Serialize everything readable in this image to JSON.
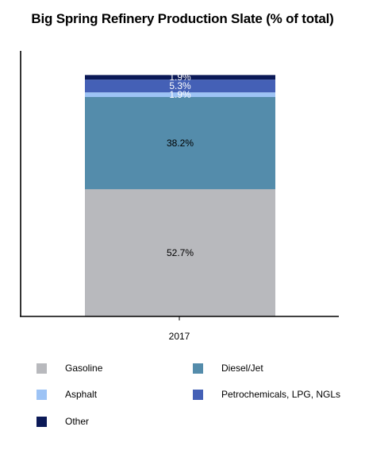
{
  "chart_data": {
    "type": "bar",
    "stacked": true,
    "title": "Big Spring Refinery Production Slate (% of total)",
    "categories": [
      "2017"
    ],
    "series": [
      {
        "name": "Gasoline",
        "values": [
          52.7
        ],
        "label": "52.7%",
        "color": "#b8b9bd",
        "label_color": "#000000"
      },
      {
        "name": "Diesel/Jet",
        "values": [
          38.2
        ],
        "label": "38.2%",
        "color": "#548cab",
        "label_color": "#000000"
      },
      {
        "name": "Asphalt",
        "values": [
          1.9
        ],
        "label": "1.9%",
        "color": "#9dc3f5",
        "label_color": "#ffffff"
      },
      {
        "name": "Petrochemicals, LPG, NGLs",
        "values": [
          5.3
        ],
        "label": "5.3%",
        "color": "#4460b6",
        "label_color": "#ffffff"
      },
      {
        "name": "Other",
        "values": [
          1.9
        ],
        "label": "1.9%",
        "color": "#0b1957",
        "label_color": "#ffffff"
      }
    ],
    "ylim": [
      0,
      110
    ],
    "grid": false,
    "legend_position": "bottom"
  }
}
